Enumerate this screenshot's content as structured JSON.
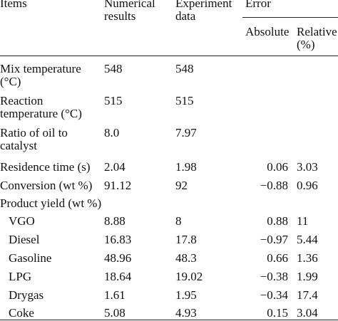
{
  "header": {
    "items": "Items",
    "numerical": "Numerical results",
    "experiment": "Experiment data",
    "error": "Error",
    "absolute": "Absolute",
    "relative": "Relative (%)"
  },
  "table": {
    "rows": [
      {
        "item": "Mix temperature (°C)",
        "numerical": "548",
        "experiment": "548"
      },
      {
        "item": "Reaction temperature (°C)",
        "numerical": "515",
        "experiment": "515"
      },
      {
        "item": "Ratio of oil to catalyst",
        "numerical": "8.0",
        "experiment": "7.97"
      },
      {
        "item": "Residence time (s)",
        "numerical": "2.04",
        "experiment": "1.98",
        "absolute": "0.06",
        "relative": "3.03"
      },
      {
        "item": "Conversion (wt %)",
        "numerical": "91.12",
        "experiment": "92",
        "absolute": "−0.88",
        "relative": "0.96"
      }
    ],
    "product_yield": {
      "label": "Product yield (wt %)",
      "rows": [
        {
          "item": "VGO",
          "numerical": "8.88",
          "experiment": "8",
          "absolute": "0.88",
          "relative": "11"
        },
        {
          "item": "Diesel",
          "numerical": "16.83",
          "experiment": "17.8",
          "absolute": "−0.97",
          "relative": "5.44"
        },
        {
          "item": "Gasoline",
          "numerical": "48.96",
          "experiment": "48.3",
          "absolute": "0.66",
          "relative": "1.36"
        },
        {
          "item": "LPG",
          "numerical": "18.64",
          "experiment": "19.02",
          "absolute": "−0.38",
          "relative": "1.99"
        },
        {
          "item": "Drygas",
          "numerical": "1.61",
          "experiment": "1.95",
          "absolute": "−0.34",
          "relative": "17.4"
        },
        {
          "item": "Coke",
          "numerical": "5.08",
          "experiment": "4.93",
          "absolute": "0.15",
          "relative": "3.04"
        }
      ]
    }
  }
}
